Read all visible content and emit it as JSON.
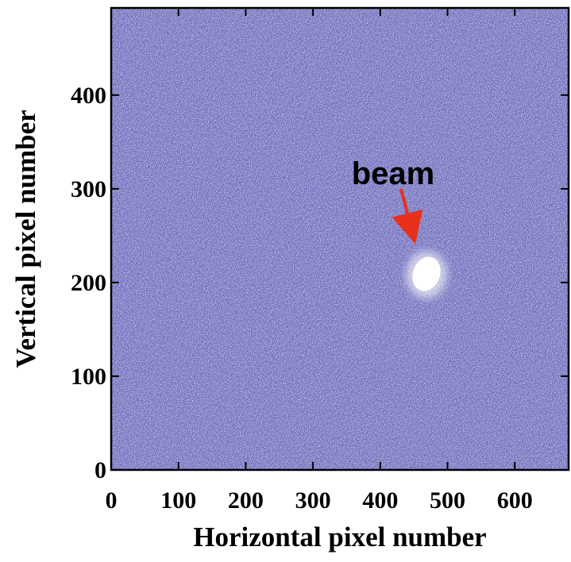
{
  "chart_data": {
    "type": "image",
    "xlabel": "Horizontal pixel number",
    "ylabel": "Vertical pixel number",
    "xlim": [
      0,
      680
    ],
    "ylim": [
      0,
      493
    ],
    "xticks": [
      0,
      100,
      200,
      300,
      400,
      500,
      600
    ],
    "yticks": [
      0,
      100,
      200,
      300,
      400
    ],
    "annotation": "beam",
    "color": "#6f6fbd"
  }
}
